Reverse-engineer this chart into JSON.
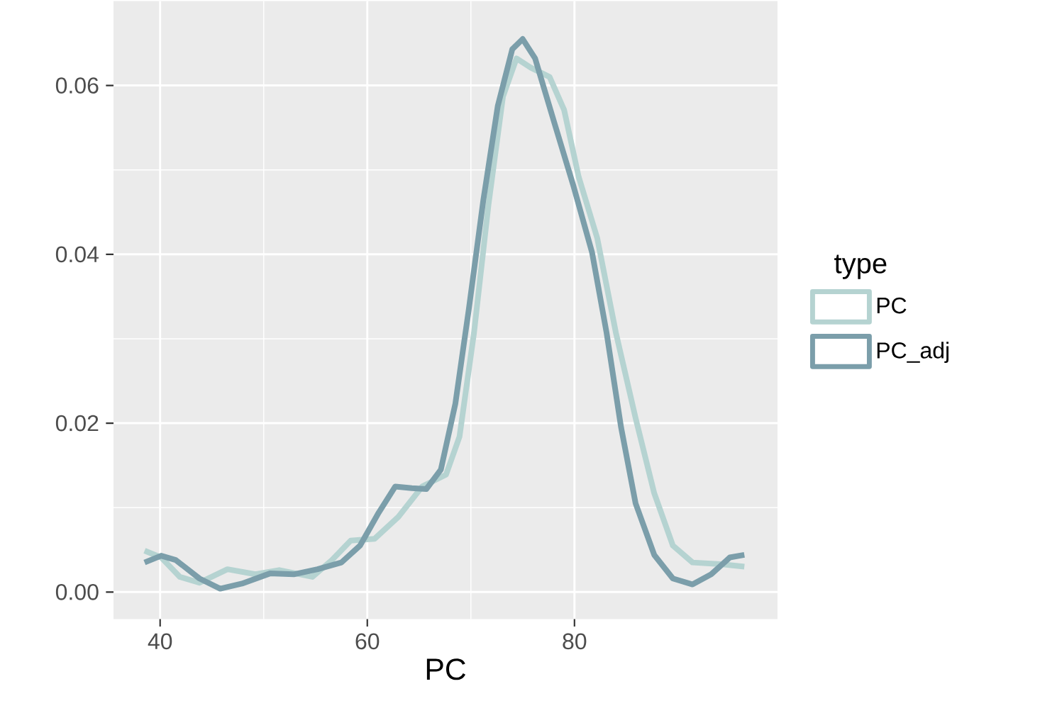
{
  "chart_data": {
    "type": "line",
    "xlabel": "PC",
    "legend_title": "type",
    "legend": "right",
    "grid": true,
    "line_style": "solid",
    "marker": "none",
    "xlim": [
      35.5,
      99.6
    ],
    "ylim": [
      -0.0032,
      0.07
    ],
    "xticks": [
      40,
      60,
      80
    ],
    "yticks": [
      {
        "value": 0,
        "label": "0.00"
      },
      {
        "value": 0.02,
        "label": "0.02"
      },
      {
        "value": 0.04,
        "label": "0.04"
      },
      {
        "value": 0.06,
        "label": "0.06"
      }
    ],
    "series": [
      {
        "name": "PC",
        "color": "#b5d3d1",
        "x": [
          38.5,
          40.1,
          41.9,
          43.8,
          46.5,
          49.2,
          51.5,
          54.7,
          56.6,
          58.4,
          60.7,
          63.0,
          65.3,
          67.6,
          68.9,
          70.3,
          71.7,
          73.1,
          74.4,
          75.8,
          77.6,
          79.0,
          80.4,
          82.2,
          84.0,
          85.9,
          87.7,
          89.5,
          91.4,
          94.1,
          96.4
        ],
        "values": [
          0.0049,
          0.0041,
          0.0018,
          0.0011,
          0.0027,
          0.0021,
          0.0026,
          0.0018,
          0.0038,
          0.0061,
          0.0063,
          0.0089,
          0.0125,
          0.0139,
          0.0184,
          0.0307,
          0.0459,
          0.0587,
          0.0632,
          0.0621,
          0.061,
          0.0571,
          0.0492,
          0.0419,
          0.0307,
          0.0206,
          0.0117,
          0.0055,
          0.0035,
          0.0033,
          0.003
        ]
      },
      {
        "name": "PC_adj",
        "color": "#7b9eaa",
        "x": [
          38.5,
          40.1,
          41.5,
          43.8,
          45.8,
          47.9,
          50.6,
          52.9,
          55.2,
          57.5,
          59.3,
          61.1,
          62.7,
          64.3,
          65.7,
          67.1,
          68.5,
          69.8,
          71.2,
          72.6,
          74.0,
          75.0,
          76.2,
          78.1,
          79.9,
          81.7,
          83.1,
          84.5,
          85.9,
          87.7,
          89.5,
          91.4,
          93.2,
          95.0,
          96.4
        ],
        "values": [
          0.0035,
          0.0043,
          0.0038,
          0.0016,
          0.0004,
          0.001,
          0.0022,
          0.0021,
          0.0027,
          0.0035,
          0.0055,
          0.0094,
          0.0125,
          0.0123,
          0.0122,
          0.0145,
          0.0223,
          0.0335,
          0.0464,
          0.0576,
          0.0643,
          0.0655,
          0.0632,
          0.0554,
          0.0481,
          0.0402,
          0.0307,
          0.0195,
          0.0105,
          0.0044,
          0.0016,
          0.0009,
          0.0021,
          0.0041,
          0.0044
        ]
      }
    ]
  }
}
